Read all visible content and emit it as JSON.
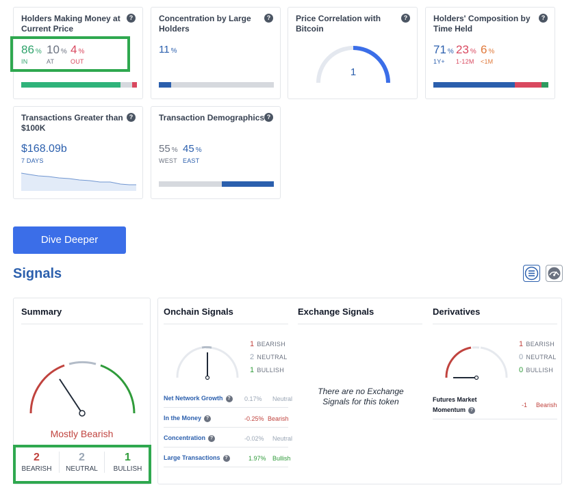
{
  "cards": {
    "holders_money": {
      "title": "Holders Making Money at Current Price",
      "in_value": "86",
      "in_label": "IN",
      "at_value": "10",
      "at_label": "AT",
      "out_value": "4",
      "out_label": "OUT",
      "pct": "%",
      "bar": {
        "in": 86,
        "at": 10,
        "out": 4
      }
    },
    "concentration": {
      "title": "Concentration by Large Holders",
      "value": "11",
      "pct": "%",
      "bar_fill": 11
    },
    "btc_correlation": {
      "title": "Price Correlation with Bitcoin",
      "value": "1"
    },
    "composition": {
      "title": "Holders' Composition by Time Held",
      "long_value": "71",
      "long_label": "1Y+",
      "mid_value": "23",
      "mid_label": "1-12M",
      "short_value": "6",
      "short_label": "<1M",
      "pct": "%",
      "bar": {
        "long": 71,
        "mid": 23,
        "short": 6
      }
    },
    "large_tx": {
      "title": "Transactions Greater than $100K",
      "value": "$168.09b",
      "period": "7 DAYS"
    },
    "demographics": {
      "title": "Transaction Demographics",
      "west_value": "55",
      "west_label": "WEST",
      "east_value": "45",
      "east_label": "EAST",
      "pct": "%",
      "bar": {
        "west": 55,
        "east": 45
      }
    }
  },
  "help_glyph": "?",
  "dive_deeper_label": "Dive Deeper",
  "signals_title": "Signals",
  "summary": {
    "title": "Summary",
    "verdict": "Mostly Bearish",
    "bearish_count": "2",
    "bearish_label": "BEARISH",
    "neutral_count": "2",
    "neutral_label": "NEUTRAL",
    "bullish_count": "1",
    "bullish_label": "BULLISH"
  },
  "onchain": {
    "title": "Onchain Signals",
    "bearish_count": "1",
    "bearish_label": "BEARISH",
    "neutral_count": "2",
    "neutral_label": "NEUTRAL",
    "bullish_count": "1",
    "bullish_label": "BULLISH",
    "rows": [
      {
        "label": "Net Network Growth",
        "value": "0.17%",
        "status": "Neutral"
      },
      {
        "label": "In the Money",
        "value": "-0.25%",
        "status": "Bearish"
      },
      {
        "label": "Concentration",
        "value": "-0.02%",
        "status": "Neutral"
      },
      {
        "label": "Large Transactions",
        "value": "1.97%",
        "status": "Bullish"
      }
    ]
  },
  "exchange": {
    "title": "Exchange Signals",
    "empty_line1": "There are no Exchange",
    "empty_line2": "Signals for this token"
  },
  "derivatives": {
    "title": "Derivatives",
    "bearish_count": "1",
    "bearish_label": "BEARISH",
    "neutral_count": "0",
    "neutral_label": "NEUTRAL",
    "bullish_count": "0",
    "bullish_label": "BULLISH",
    "row_label_1": "Futures Market",
    "row_label_2": "Momentum",
    "row_value": "-1",
    "row_status": "Bearish"
  },
  "icons": {
    "list_view": "list-icon",
    "gauge_view": "gauge-icon"
  },
  "colors": {
    "bearish": "#c0433e",
    "neutral": "#9aa6b5",
    "bullish": "#2f9b3a",
    "accent": "#2b5fad",
    "button": "#3b6ee8",
    "highlight": "#2fa84f"
  }
}
